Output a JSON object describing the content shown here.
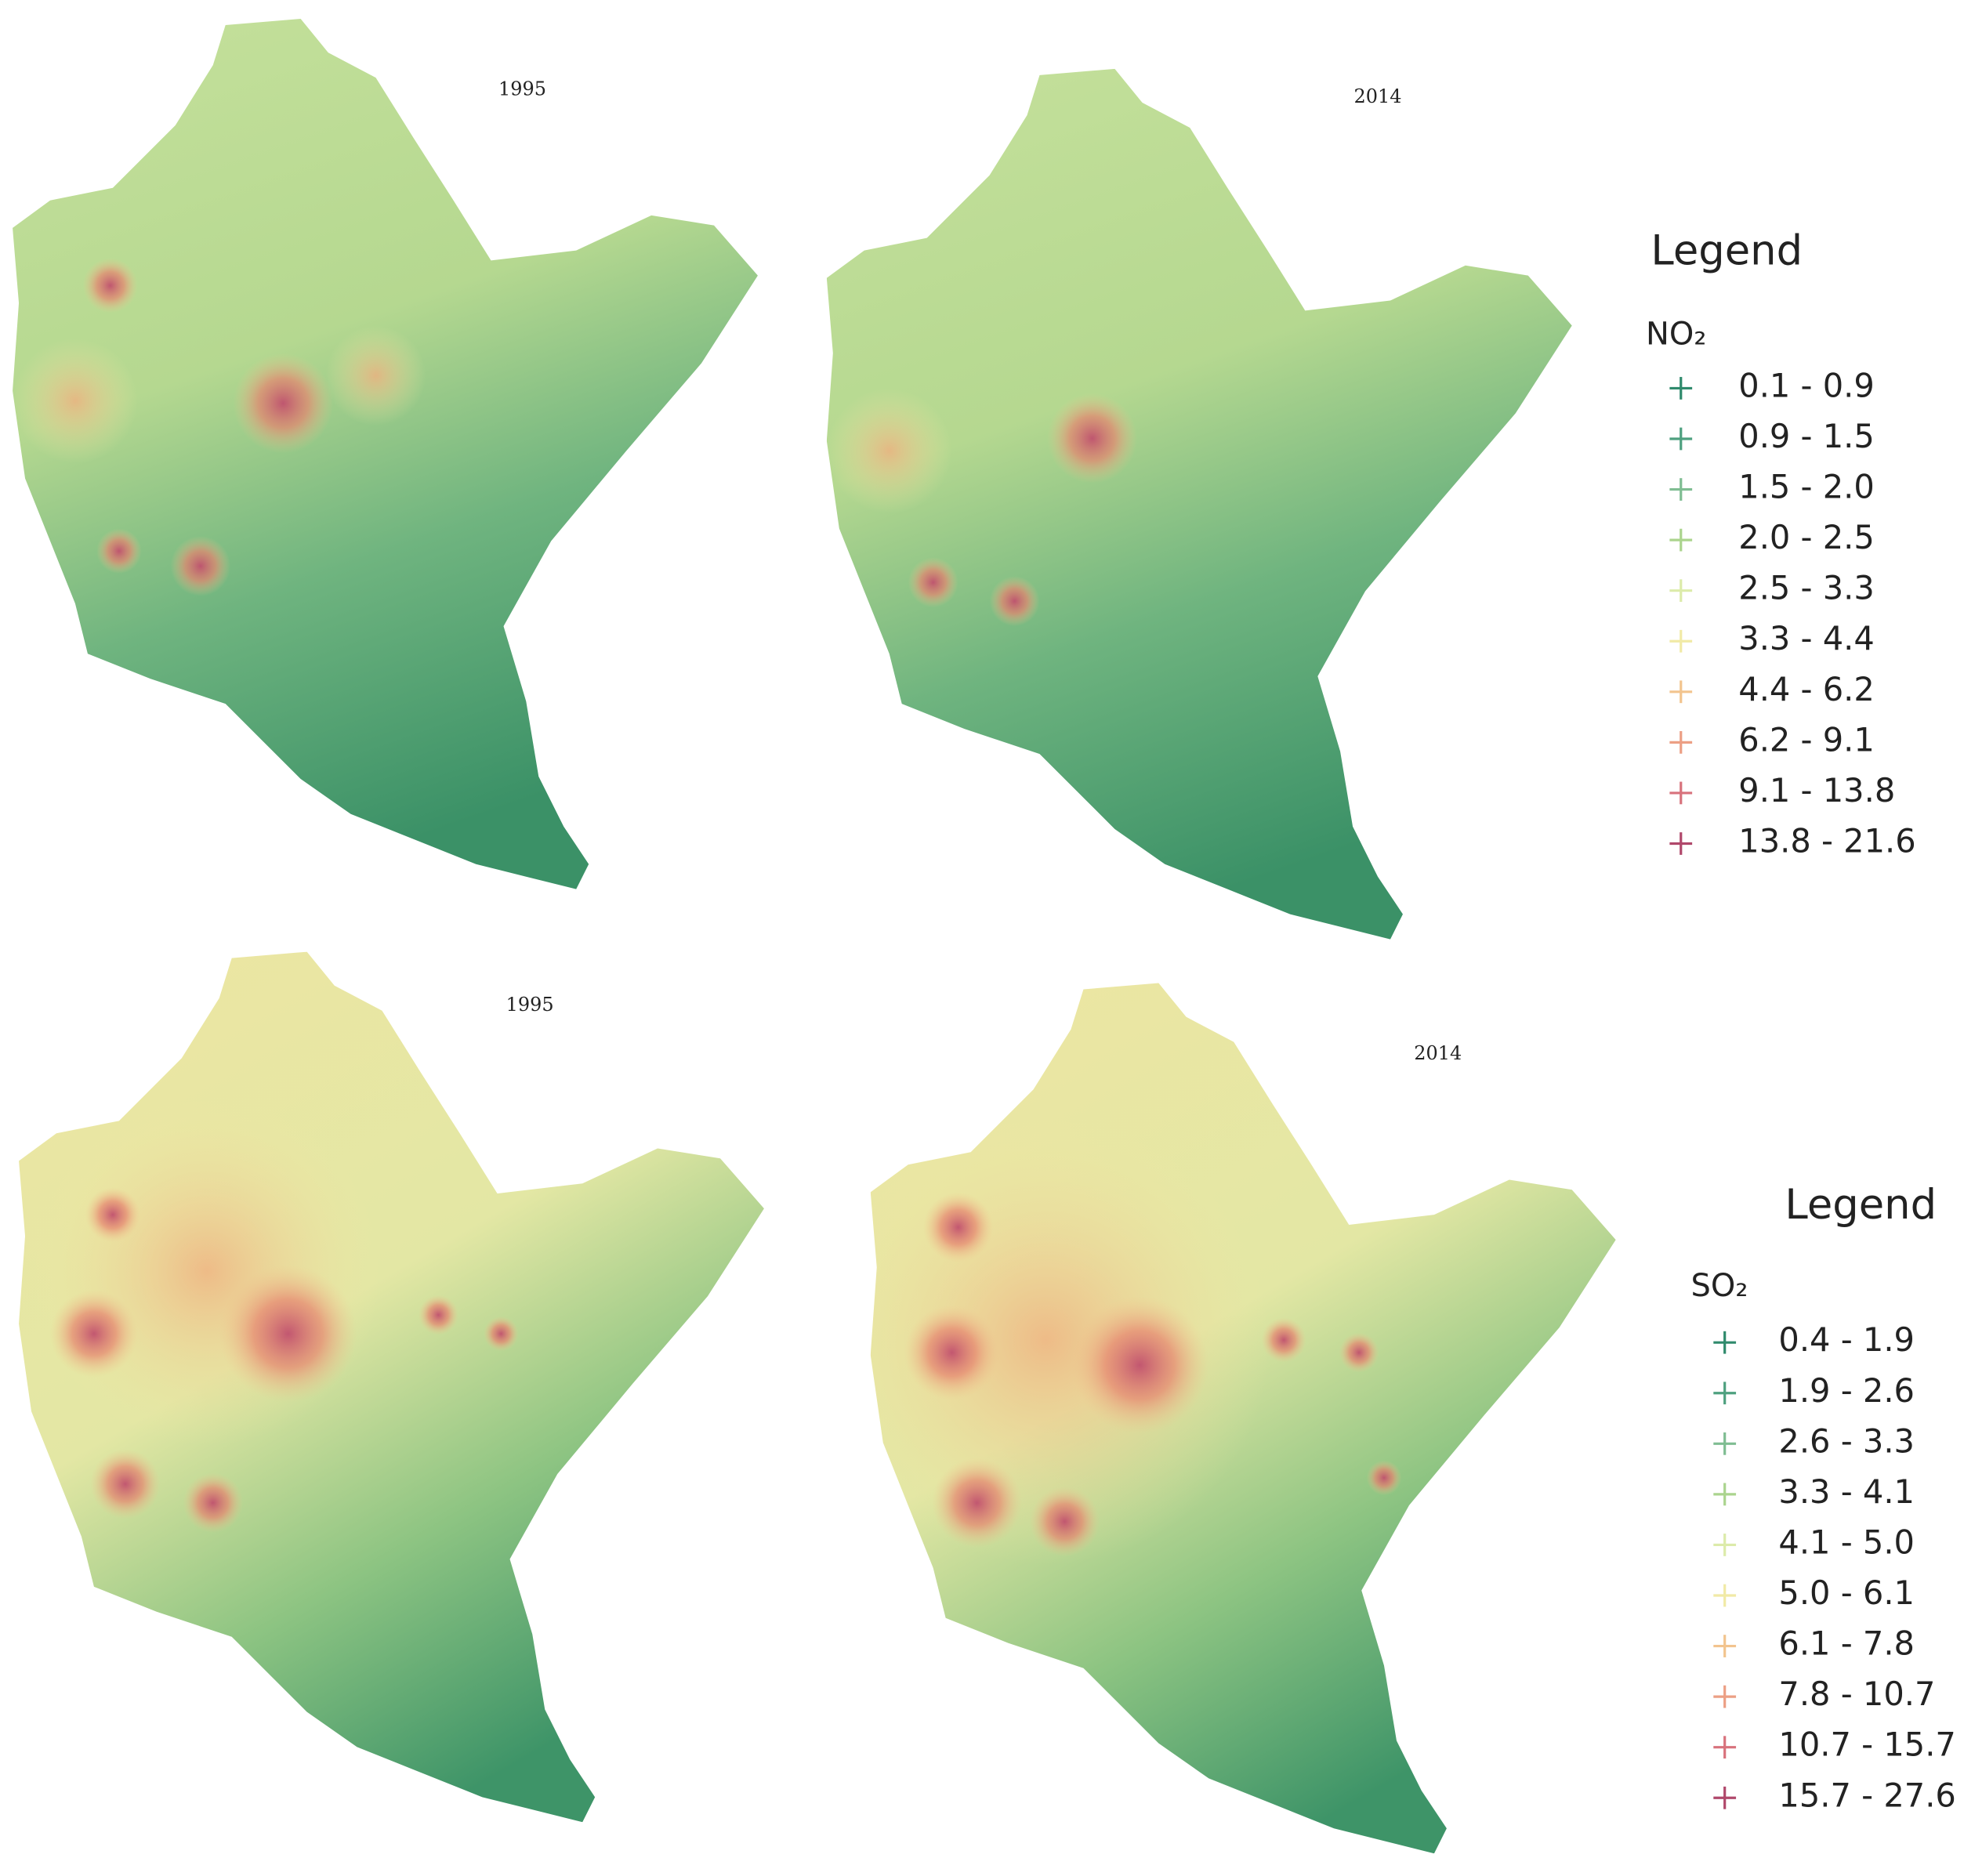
{
  "maps": [
    {
      "title": "1995"
    },
    {
      "title": "2014"
    },
    {
      "title": "1995"
    },
    {
      "title": "2014"
    }
  ],
  "legends": [
    {
      "title": "Legend",
      "variable": "NO₂",
      "classes": [
        "0.1 - 0.9",
        "0.9 - 1.5",
        "1.5 - 2.0",
        "2.0 - 2.5",
        "2.5 - 3.3",
        "3.3 - 4.4",
        "4.4 - 6.2",
        "6.2 - 9.1",
        "9.1 - 13.8",
        "13.8 - 21.6"
      ],
      "colors": [
        "#2f8a6c",
        "#4ea07f",
        "#7fbd92",
        "#abd48e",
        "#dcebaa",
        "#f1eaa6",
        "#f2c48e",
        "#ec9f84",
        "#d8727c",
        "#b0486b"
      ]
    },
    {
      "title": "Legend",
      "variable": "SO₂",
      "classes": [
        "0.4 - 1.9",
        "1.9 - 2.6",
        "2.6 - 3.3",
        "3.3 - 4.1",
        "4.1 - 5.0",
        "5.0 - 6.1",
        "6.1 - 7.8",
        "7.8 - 10.7",
        "10.7 - 15.7",
        "15.7 - 27.6"
      ],
      "colors": [
        "#2f8a6c",
        "#4ea07f",
        "#7fbd92",
        "#abd48e",
        "#dcebaa",
        "#f1eaa6",
        "#f2c48e",
        "#ec9f84",
        "#d8727c",
        "#b0486b"
      ]
    }
  ]
}
